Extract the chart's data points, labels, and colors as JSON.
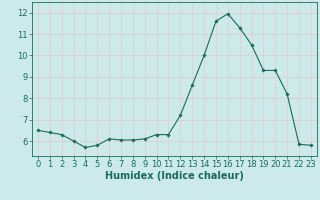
{
  "x": [
    0,
    1,
    2,
    3,
    4,
    5,
    6,
    7,
    8,
    9,
    10,
    11,
    12,
    13,
    14,
    15,
    16,
    17,
    18,
    19,
    20,
    21,
    22,
    23
  ],
  "y": [
    6.5,
    6.4,
    6.3,
    6.0,
    5.7,
    5.8,
    6.1,
    6.05,
    6.05,
    6.1,
    6.3,
    6.3,
    7.2,
    8.6,
    10.0,
    11.6,
    11.95,
    11.3,
    10.5,
    9.3,
    9.3,
    8.2,
    5.85,
    5.8
  ],
  "line_color": "#1a6b5a",
  "marker": "D",
  "markersize": 1.8,
  "linewidth": 0.8,
  "xlabel": "Humidex (Indice chaleur)",
  "xlim": [
    -0.5,
    23.5
  ],
  "ylim": [
    5.3,
    12.5
  ],
  "yticks": [
    6,
    7,
    8,
    9,
    10,
    11,
    12
  ],
  "xticks": [
    0,
    1,
    2,
    3,
    4,
    5,
    6,
    7,
    8,
    9,
    10,
    11,
    12,
    13,
    14,
    15,
    16,
    17,
    18,
    19,
    20,
    21,
    22,
    23
  ],
  "bg_color": "#cceaea",
  "grid_color": "#e8c8c8",
  "tick_color": "#1a6b5a",
  "label_color": "#1a6b5a",
  "tick_fontsize": 6,
  "xlabel_fontsize": 7
}
